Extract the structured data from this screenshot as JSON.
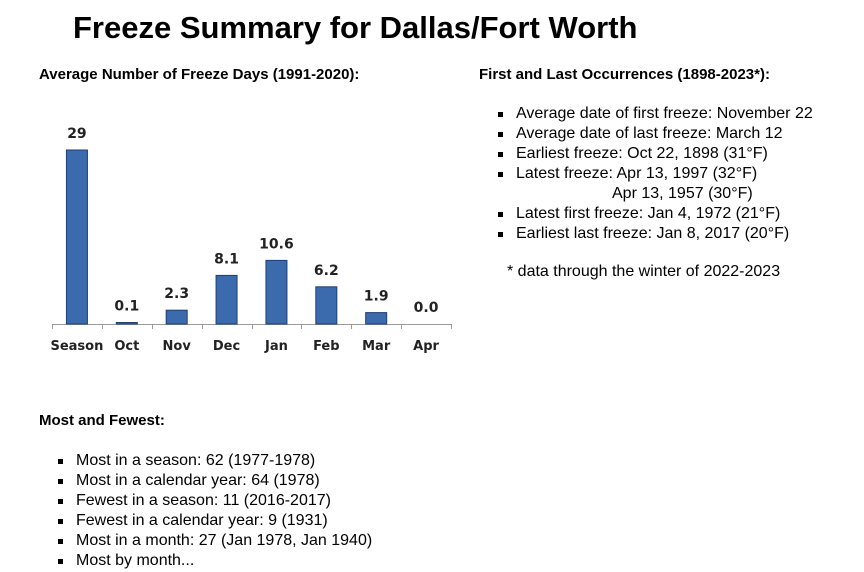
{
  "page": {
    "title": "Freeze Summary for Dallas/Fort Worth"
  },
  "chart_section": {
    "heading": "Average Number of Freeze Days (1991-2020):"
  },
  "chart_data": {
    "type": "bar",
    "title": "",
    "xlabel": "",
    "ylabel": "",
    "categories": [
      "Season",
      "Oct",
      "Nov",
      "Dec",
      "Jan",
      "Feb",
      "Mar",
      "Apr"
    ],
    "values": [
      29,
      0.1,
      2.3,
      8.1,
      10.6,
      6.2,
      1.9,
      0.0
    ],
    "value_labels": [
      "29",
      "0.1",
      "2.3",
      "8.1",
      "10.6",
      "6.2",
      "1.9",
      "0.0"
    ],
    "ylim": [
      0,
      29
    ],
    "grid": false,
    "bar_color": "#3b6aad",
    "bar_edge_color": "#1f3f73"
  },
  "occurrences": {
    "heading": "First and Last Occurrences (1898-2023*):",
    "items": [
      {
        "text": "Average date of first freeze: November 22"
      },
      {
        "text": "Average date of last freeze: March 12"
      },
      {
        "text": "Earliest freeze: Oct 22, 1898 (31°F)"
      },
      {
        "text": "Latest freeze: Apr 13, 1997 (32°F)"
      },
      {
        "text": "Apr 13, 1957 (30°F)",
        "continuation": true
      },
      {
        "text": "Latest first freeze: Jan 4, 1972 (21°F)"
      },
      {
        "text": "Earliest last freeze: Jan 8, 2017 (20°F)"
      }
    ],
    "footnote": "* data through the winter of 2022-2023"
  },
  "most_fewest": {
    "heading": "Most and Fewest:",
    "items": [
      {
        "text": "Most in a season: 62 (1977-1978)"
      },
      {
        "text": "Most in a calendar year: 64 (1978)"
      },
      {
        "text": "Fewest in a season: 11 (2016-2017)"
      },
      {
        "text": "Fewest in a calendar year: 9 (1931)"
      },
      {
        "text": "Most in a month: 27 (Jan 1978, Jan 1940)"
      },
      {
        "text": "Most by month..."
      }
    ]
  }
}
